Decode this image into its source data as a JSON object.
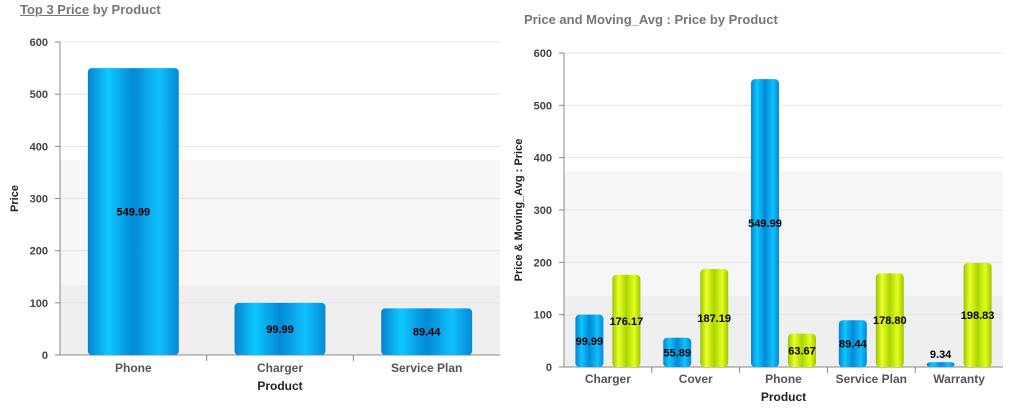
{
  "charts": {
    "left": {
      "title_link": "Top 3 Price",
      "title_by": " by ",
      "title_dim": "Product"
    },
    "right": {
      "title": "Price and Moving_Avg : Price by Product"
    }
  },
  "colors": {
    "price_series": "#0aa3e8",
    "moving_avg_series": "#c6ee00",
    "band_light": "#f6f6f6",
    "band_dark": "#efefef"
  },
  "chart_data": [
    {
      "type": "bar",
      "title": "Top 3 Price by Product",
      "xlabel": "Product",
      "ylabel": "Price",
      "ylim": [
        0,
        600
      ],
      "yticks": [
        0,
        100,
        200,
        300,
        400,
        500,
        600
      ],
      "categories": [
        "Phone",
        "Charger",
        "Service Plan"
      ],
      "series": [
        {
          "values": [
            549.99,
            99.99,
            89.44
          ],
          "labels": [
            "549.99",
            "99.99",
            "89.44"
          ]
        }
      ],
      "grid": true,
      "legend": "none"
    },
    {
      "type": "bar",
      "title": "Price and Moving_Avg : Price by Product",
      "xlabel": "Product",
      "ylabel": "Price & Moving_Avg : Price",
      "ylim": [
        0,
        600
      ],
      "yticks": [
        0,
        100,
        200,
        300,
        400,
        500,
        600
      ],
      "categories": [
        "Charger",
        "Cover",
        "Phone",
        "Service Plan",
        "Warranty"
      ],
      "series": [
        {
          "values": [
            99.99,
            55.89,
            549.99,
            89.44,
            9.34
          ],
          "labels": [
            "99.99",
            "55.89",
            "549.99",
            "89.44",
            "9.34"
          ]
        },
        {
          "values": [
            176.17,
            187.19,
            63.67,
            178.8,
            198.83
          ],
          "labels": [
            "176.17",
            "187.19",
            "63.67",
            "178.80",
            "198.83"
          ]
        }
      ],
      "grid": true,
      "legend": "none"
    }
  ]
}
